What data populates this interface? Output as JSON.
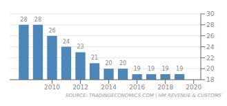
{
  "chart_data": {
    "type": "bar",
    "x": [
      2008,
      2009,
      2010,
      2011,
      2012,
      2013,
      2014,
      2015,
      2016,
      2017,
      2018,
      2019
    ],
    "values": [
      28,
      28,
      26,
      24,
      23,
      21,
      20,
      20,
      19,
      19,
      19,
      19
    ],
    "color": "#4d86b8",
    "xlim": [
      2007.0,
      2020.5
    ],
    "xticks": [
      2010,
      2012,
      2014,
      2016,
      2018,
      2020
    ],
    "ylim": [
      18,
      30
    ],
    "yticks": [
      18,
      20,
      22,
      24,
      26,
      28,
      30
    ],
    "grid": true,
    "data_labels": true,
    "annotation": "SOURCE: TRADINGECONOMICS.COM | HM REVENUE & CUSTOMS"
  }
}
